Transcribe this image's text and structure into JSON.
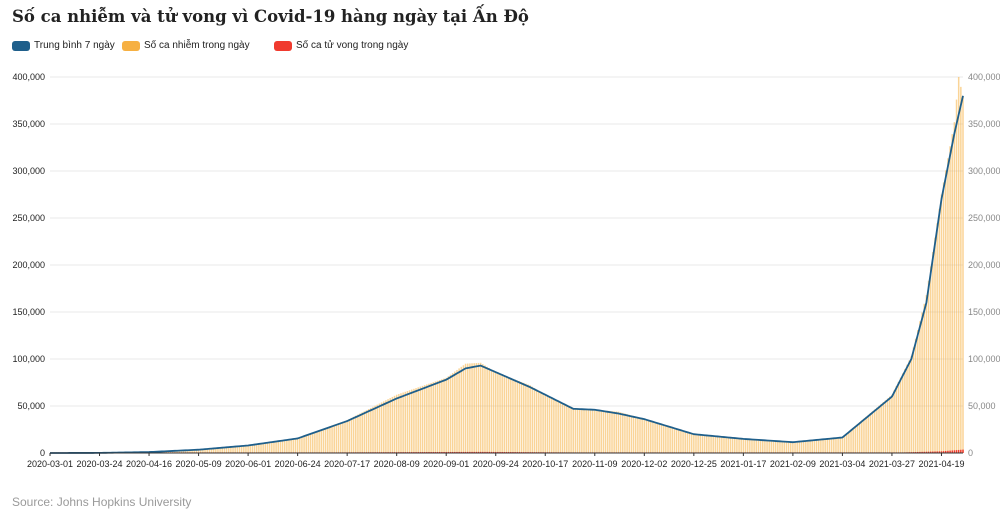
{
  "title": "Số ca nhiễm và tử vong vì Covid-19 hàng ngày tại Ấn Độ",
  "source": "Source: Johns Hopkins University",
  "colors": {
    "avg": "#1f5f8b",
    "cases": "#f6b042",
    "deaths": "#f03a2e",
    "grid": "#e8e8e8",
    "axis": "#333333",
    "right_tick": "#888888"
  },
  "legend": [
    {
      "key": "avg",
      "label": "Trung bình 7 ngày"
    },
    {
      "key": "cases",
      "label": "Số ca nhiễm trong ngày"
    },
    {
      "key": "deaths",
      "label": "Số ca tử vong trong ngày"
    }
  ],
  "chart_data": {
    "type": "bar",
    "title": "Số ca nhiễm và tử vong vì Covid-19 hàng ngày tại Ấn Độ",
    "x_range": [
      "2020-03-01",
      "2021-04-29"
    ],
    "ylim": [
      0,
      400000
    ],
    "y_ticks": [
      0,
      50000,
      100000,
      150000,
      200000,
      250000,
      300000,
      350000,
      400000
    ],
    "y_tick_labels": [
      "0",
      "50,000",
      "100,000",
      "150,000",
      "200,000",
      "250,000",
      "300,000",
      "350,000",
      "400,000"
    ],
    "x_tick_labels": [
      "2020-03-01",
      "2020-03-24",
      "2020-04-16",
      "2020-05-09",
      "2020-06-01",
      "2020-06-24",
      "2020-07-17",
      "2020-08-09",
      "2020-09-01",
      "2020-09-24",
      "2020-10-17",
      "2020-11-09",
      "2020-12-02",
      "2020-12-25",
      "2021-01-17",
      "2021-02-09",
      "2021-03-04",
      "2021-03-27",
      "2021-04-19"
    ],
    "grid": true,
    "legend_position": "top-left",
    "series": [
      {
        "name": "Trung bình 7 ngày",
        "type": "line",
        "points": [
          [
            "2020-03-01",
            0
          ],
          [
            "2020-03-24",
            100
          ],
          [
            "2020-04-16",
            1000
          ],
          [
            "2020-05-09",
            3500
          ],
          [
            "2020-06-01",
            8000
          ],
          [
            "2020-06-24",
            15500
          ],
          [
            "2020-07-17",
            34000
          ],
          [
            "2020-08-09",
            58000
          ],
          [
            "2020-09-01",
            78000
          ],
          [
            "2020-09-10",
            90000
          ],
          [
            "2020-09-17",
            93000
          ],
          [
            "2020-09-24",
            86000
          ],
          [
            "2020-10-10",
            70000
          ],
          [
            "2020-10-17",
            62000
          ],
          [
            "2020-10-30",
            47000
          ],
          [
            "2020-11-09",
            46000
          ],
          [
            "2020-11-20",
            42000
          ],
          [
            "2020-12-02",
            36000
          ],
          [
            "2020-12-25",
            20000
          ],
          [
            "2021-01-17",
            15000
          ],
          [
            "2021-02-09",
            11500
          ],
          [
            "2021-03-04",
            16500
          ],
          [
            "2021-03-27",
            60000
          ],
          [
            "2021-04-05",
            100000
          ],
          [
            "2021-04-12",
            160000
          ],
          [
            "2021-04-19",
            270000
          ],
          [
            "2021-04-25",
            340000
          ],
          [
            "2021-04-29",
            380000
          ]
        ]
      },
      {
        "name": "Số ca nhiễm trong ngày",
        "type": "bar",
        "points": [
          [
            "2020-03-01",
            0
          ],
          [
            "2020-03-24",
            100
          ],
          [
            "2020-04-16",
            1100
          ],
          [
            "2020-05-09",
            3600
          ],
          [
            "2020-06-01",
            8500
          ],
          [
            "2020-06-24",
            16000
          ],
          [
            "2020-07-17",
            35000
          ],
          [
            "2020-08-09",
            62000
          ],
          [
            "2020-09-01",
            80000
          ],
          [
            "2020-09-10",
            95000
          ],
          [
            "2020-09-17",
            96000
          ],
          [
            "2020-09-24",
            86000
          ],
          [
            "2020-10-10",
            72000
          ],
          [
            "2020-10-17",
            62000
          ],
          [
            "2020-10-30",
            48000
          ],
          [
            "2020-11-09",
            46000
          ],
          [
            "2020-11-20",
            44000
          ],
          [
            "2020-12-02",
            36000
          ],
          [
            "2020-12-25",
            20000
          ],
          [
            "2021-01-17",
            15000
          ],
          [
            "2021-02-09",
            12000
          ],
          [
            "2021-03-04",
            17000
          ],
          [
            "2021-03-27",
            62000
          ],
          [
            "2021-04-05",
            103000
          ],
          [
            "2021-04-12",
            168000
          ],
          [
            "2021-04-19",
            275000
          ],
          [
            "2021-04-25",
            352000
          ],
          [
            "2021-04-27",
            400000
          ],
          [
            "2021-04-29",
            379000
          ]
        ]
      },
      {
        "name": "Số ca tử vong trong ngày",
        "type": "bar",
        "points": [
          [
            "2020-03-01",
            0
          ],
          [
            "2020-05-09",
            100
          ],
          [
            "2020-07-17",
            700
          ],
          [
            "2020-09-17",
            1200
          ],
          [
            "2020-11-09",
            500
          ],
          [
            "2021-02-09",
            100
          ],
          [
            "2021-03-27",
            300
          ],
          [
            "2021-04-19",
            1800
          ],
          [
            "2021-04-29",
            3600
          ]
        ]
      }
    ]
  }
}
